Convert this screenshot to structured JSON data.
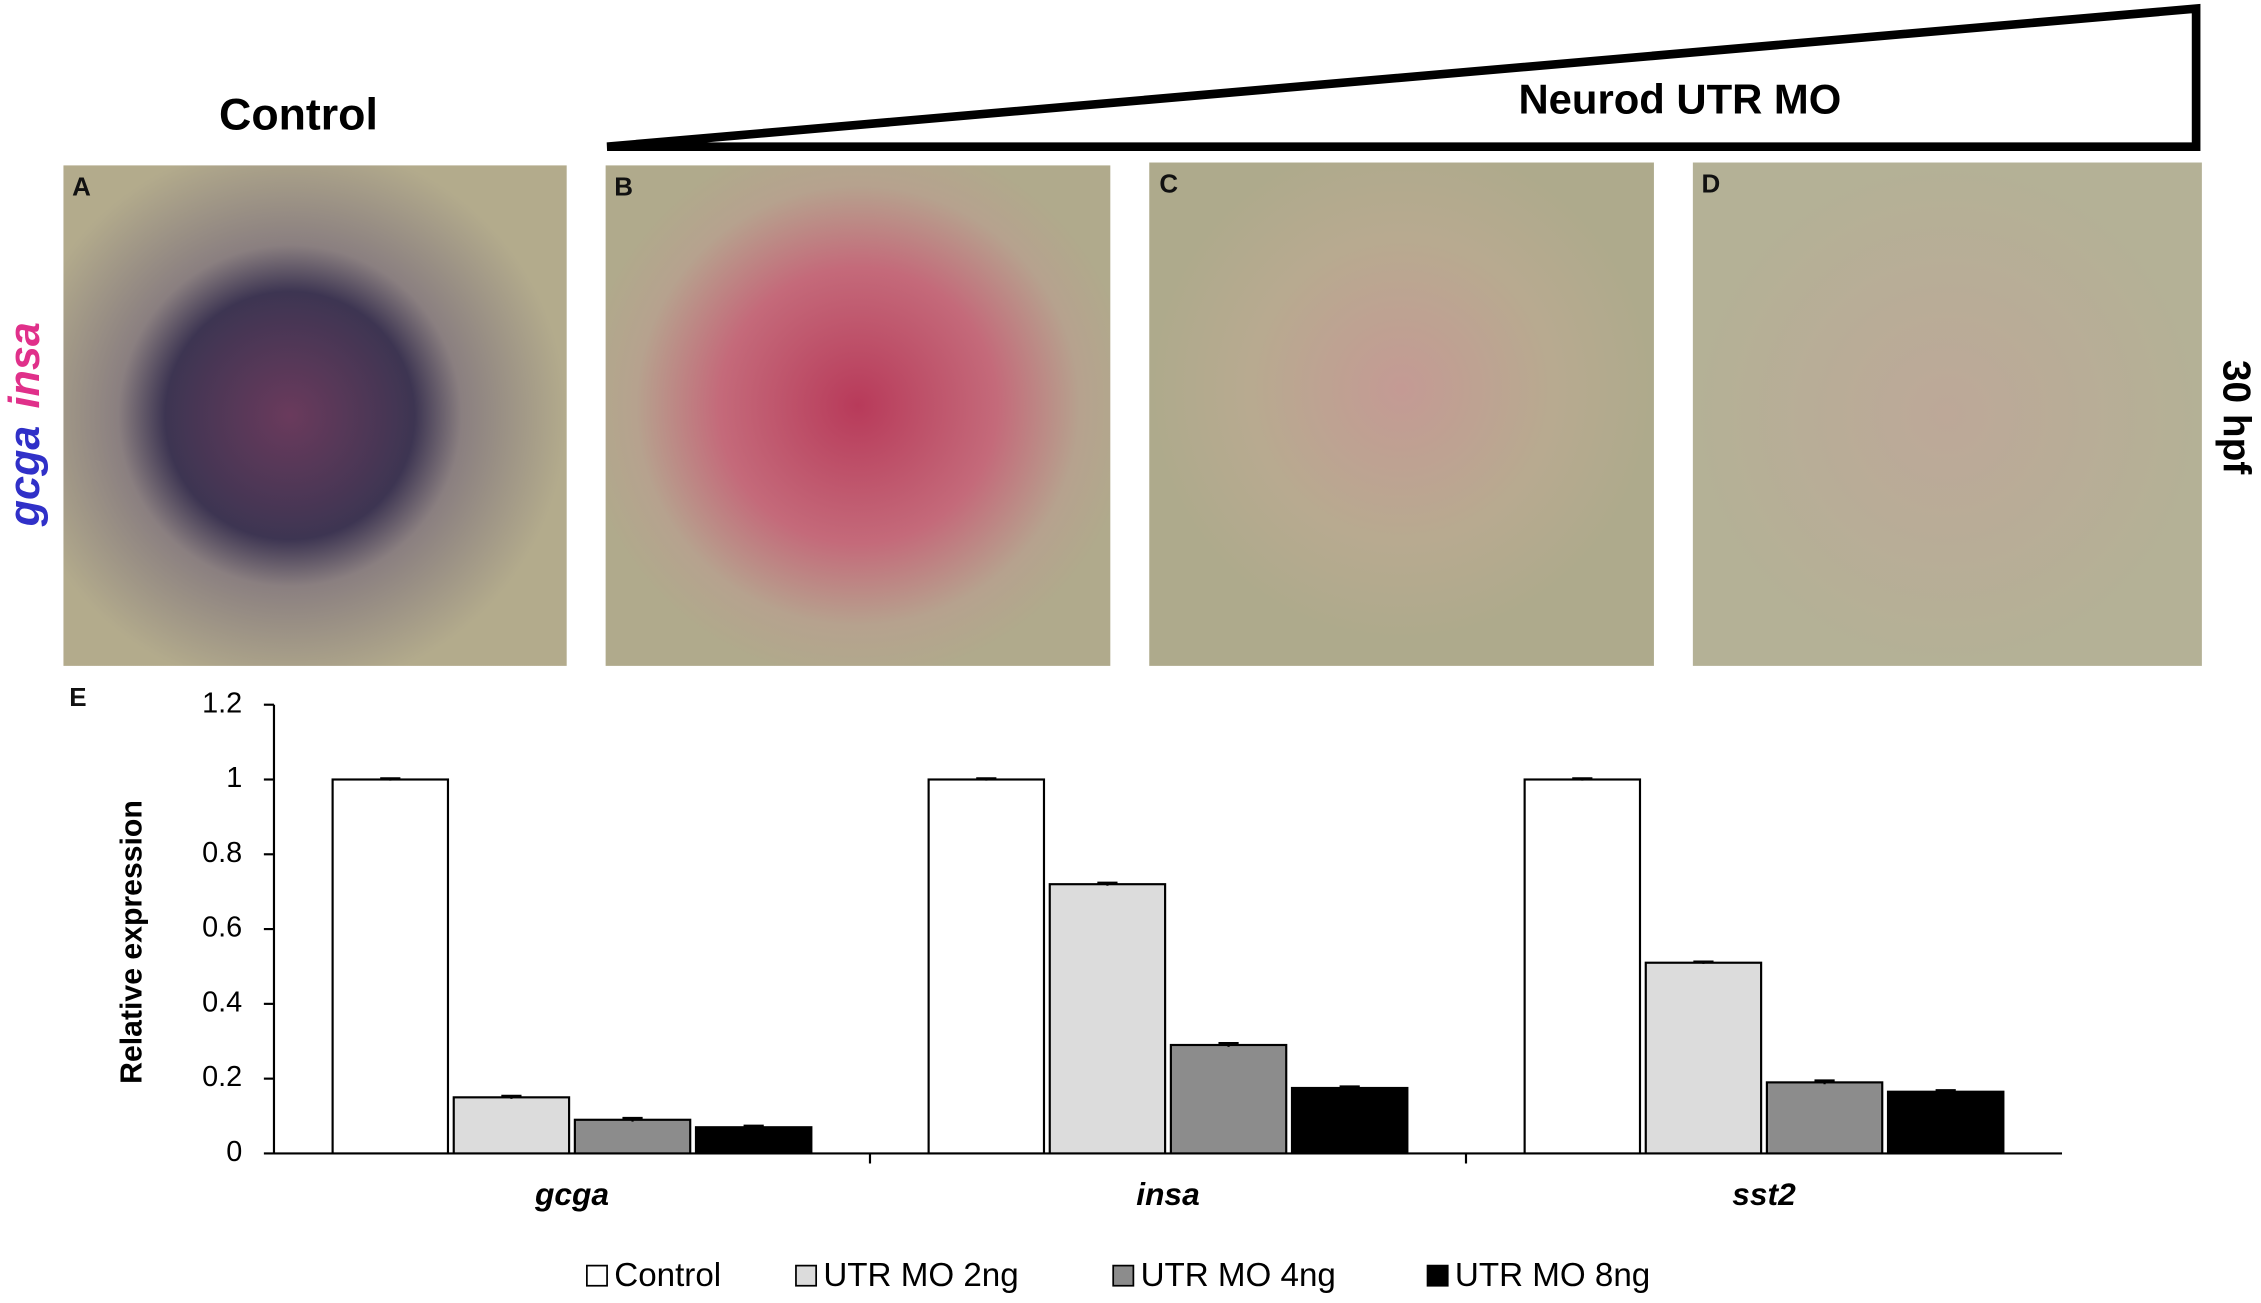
{
  "figure": {
    "control_title": "Control",
    "treatment_title": "Neurod UTR MO",
    "stage": "30 hpf",
    "stain_labels": [
      "gcga",
      "insa"
    ],
    "panel_labels": [
      "A",
      "B",
      "C",
      "D",
      "E"
    ]
  },
  "chart_data": {
    "type": "bar",
    "categories": [
      "gcga",
      "insa",
      "sst2"
    ],
    "y_label": "Relative expression",
    "ylim": [
      0,
      1.2
    ],
    "yticks": [
      0,
      0.2,
      0.4,
      0.6,
      0.8,
      1,
      1.2
    ],
    "series": [
      {
        "name": "Control",
        "color": "#ffffff",
        "values": [
          1,
          1,
          1
        ],
        "errors": [
          0.003,
          0.003,
          0.003
        ]
      },
      {
        "name": "UTR MO 2ng",
        "color": "#dcdcdc",
        "values": [
          0.15,
          0.72,
          0.51
        ],
        "errors": [
          0.004,
          0.004,
          0.003
        ]
      },
      {
        "name": "UTR MO 4ng",
        "color": "#8c8c8c",
        "values": [
          0.09,
          0.29,
          0.19
        ],
        "errors": [
          0.005,
          0.005,
          0.005
        ]
      },
      {
        "name": "UTR MO 8ng",
        "color": "#000000",
        "values": [
          0.07,
          0.175,
          0.165
        ],
        "errors": [
          0.004,
          0.004,
          0.004
        ]
      }
    ]
  }
}
